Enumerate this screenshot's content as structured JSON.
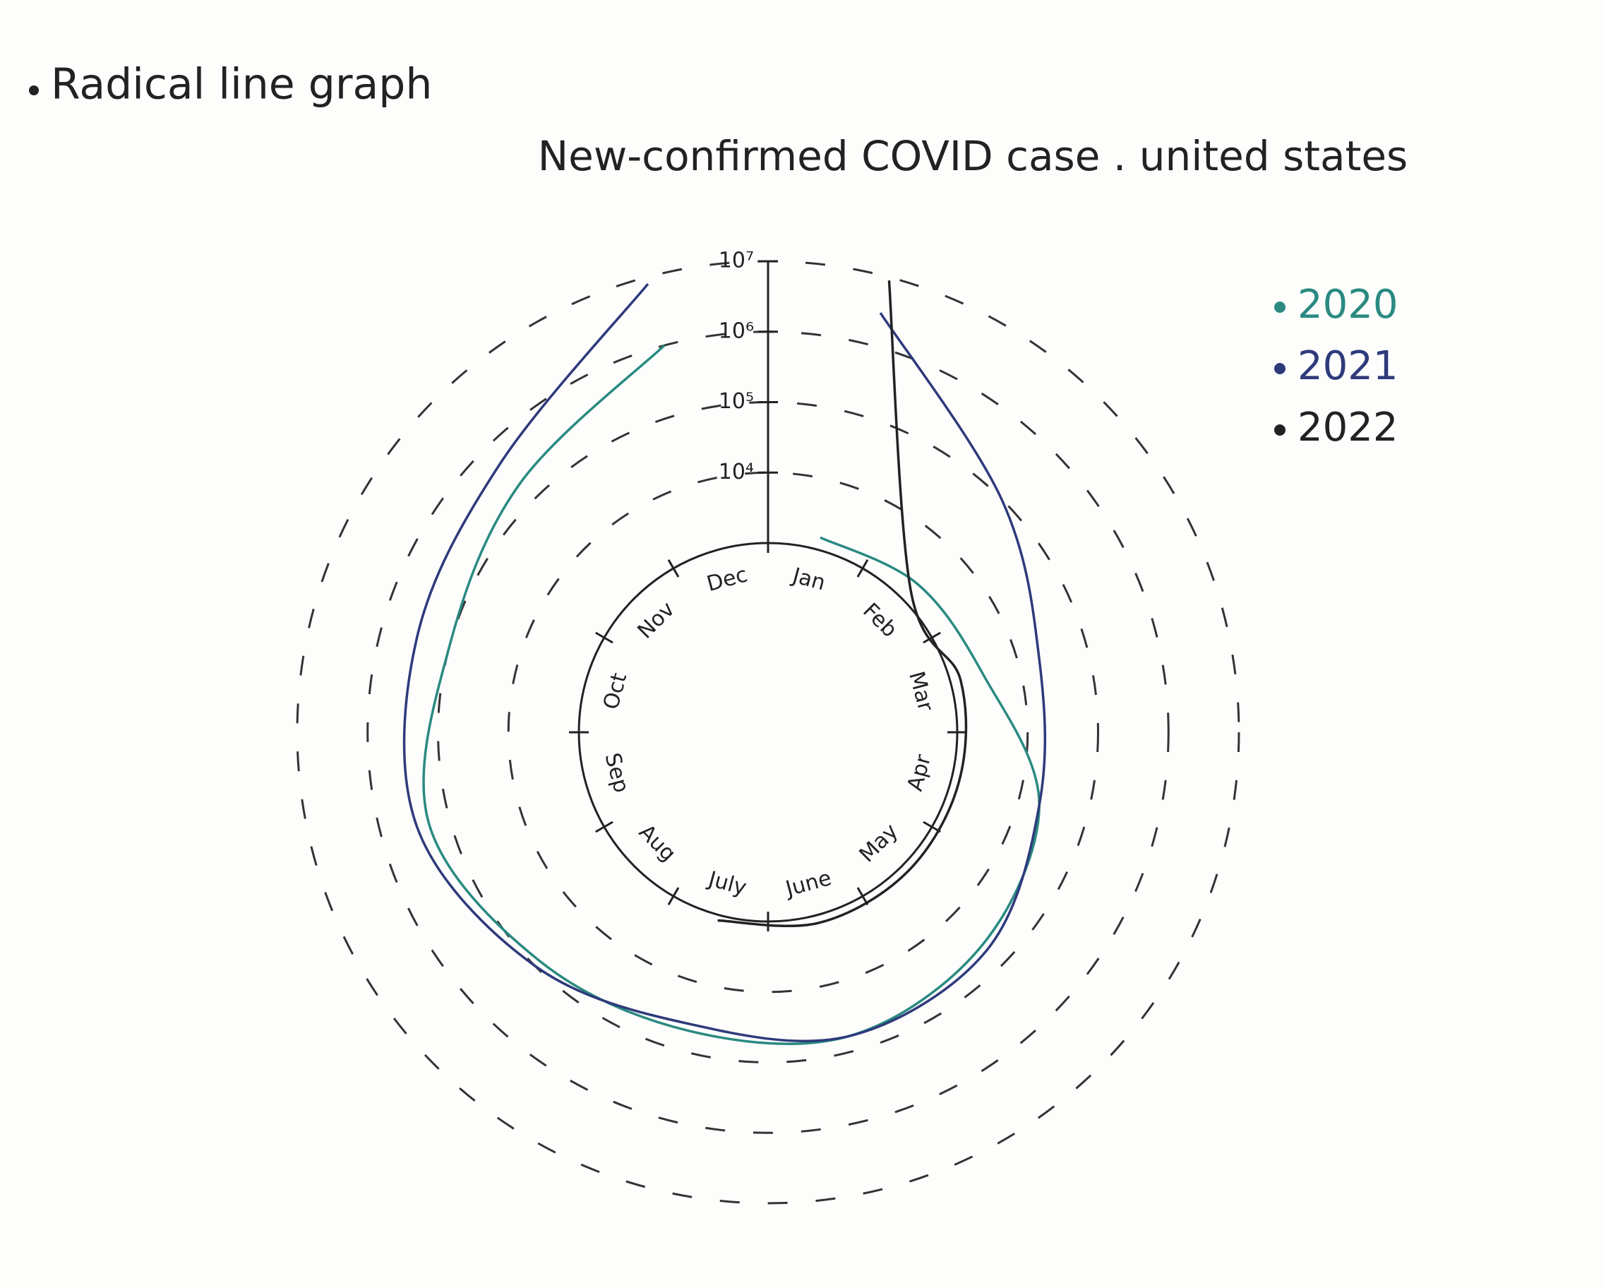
{
  "annotation": "Radical line graph",
  "chart_data": {
    "type": "radial_line",
    "title": "New-confirmed COVID case . united states",
    "categories": [
      "Jan",
      "Feb",
      "Mar",
      "Apr",
      "May",
      "June",
      "July",
      "Aug",
      "Sep",
      "Oct",
      "Nov",
      "Dec"
    ],
    "log_scale": true,
    "ylim": [
      1000,
      10000000
    ],
    "yticks": [
      {
        "value": 10000,
        "label": "10⁴"
      },
      {
        "value": 100000,
        "label": "10⁵"
      },
      {
        "value": 1000000,
        "label": "10⁶"
      },
      {
        "value": 10000000,
        "label": "10⁷"
      }
    ],
    "grid": true,
    "legend": "upper right",
    "series": [
      {
        "name": "2020",
        "color": "#2a8a80",
        "values": [
          1500,
          2000,
          3000,
          20000,
          40000,
          60000,
          50000,
          80000,
          200000,
          100000,
          200000,
          1000000
        ]
      },
      {
        "name": "2021",
        "color": "#2e3a7a",
        "values": [
          3000000,
          100000,
          20000,
          20000,
          50000,
          60000,
          40000,
          100000,
          300000,
          300000,
          500000,
          8000000
        ]
      },
      {
        "name": "2022",
        "color": "#222222",
        "values": [
          9000000,
          1500,
          1400,
          1300,
          1300,
          1300,
          1200,
          null,
          null,
          null,
          null,
          null
        ]
      }
    ]
  }
}
